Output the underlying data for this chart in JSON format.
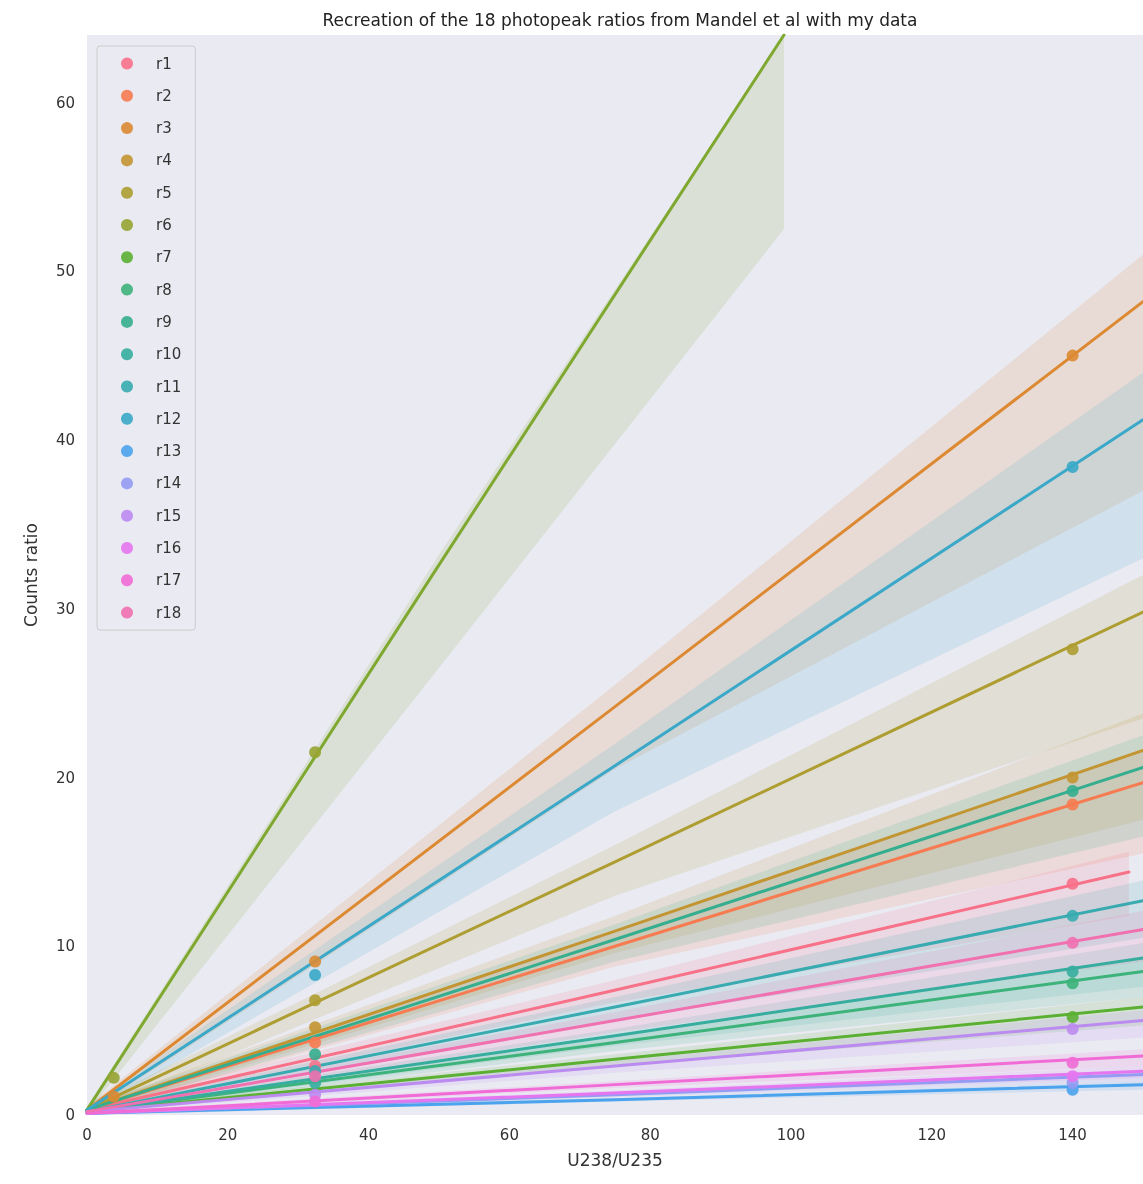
{
  "chart_data": {
    "type": "scatter",
    "title": "Recreation of the 18 photopeak ratios from Mandel et al with my data",
    "xlabel": "U238/U235",
    "ylabel": "Counts ratio",
    "xlim": [
      0,
      150
    ],
    "xticks": [
      0,
      20,
      40,
      60,
      80,
      100,
      120,
      140
    ],
    "ylim": [
      0,
      64
    ],
    "yticks": [
      0,
      10,
      20,
      30,
      40,
      50,
      60
    ],
    "grid": false,
    "legend": "top left",
    "marker": "circle",
    "series": [
      {
        "type": "line",
        "marker": "none",
        "color": "#f77189",
        "x": [
          0,
          74,
          148
        ],
        "values": [
          0.3,
          7.3,
          14.4
        ],
        "lower": [
          0.1,
          6.6,
          11.8
        ],
        "upper": [
          0.5,
          7.9,
          15.6
        ]
      },
      {
        "type": "line",
        "marker": "none",
        "color": "#f67b51",
        "x": [
          0,
          75,
          150
        ],
        "values": [
          0.3,
          10,
          19.7
        ],
        "lower": [
          0.1,
          8.8,
          15.5
        ],
        "upper": [
          0.5,
          10.8,
          21.5
        ]
      },
      {
        "type": "line",
        "marker": "none",
        "color": "#dc8932",
        "x": [
          0,
          75,
          150
        ],
        "values": [
          0.3,
          24.2,
          48.2
        ],
        "lower": [
          0.1,
          20.5,
          37
        ],
        "upper": [
          0.5,
          25.5,
          51
        ]
      },
      {
        "type": "line",
        "marker": "none",
        "color": "#c39532",
        "x": [
          0,
          75,
          150
        ],
        "values": [
          0.3,
          10.9,
          21.6
        ],
        "lower": [
          0.1,
          9.6,
          17.5
        ],
        "upper": [
          0.5,
          11.8,
          23.8
        ]
      },
      {
        "type": "line",
        "marker": "none",
        "color": "#ae9d31",
        "x": [
          0,
          75,
          150
        ],
        "values": [
          0.3,
          15,
          29.8
        ],
        "lower": [
          0.1,
          13,
          23.5
        ],
        "upper": [
          0.5,
          16,
          32
        ]
      },
      {
        "type": "line",
        "marker": "none",
        "color": "#7fa831",
        "x": [
          0,
          50,
          99
        ],
        "values": [
          0.3,
          32.6,
          64
        ],
        "lower": [
          0.1,
          26.5,
          52.5
        ],
        "upper": [
          0.5,
          33.2,
          64
        ]
      },
      {
        "type": "line",
        "marker": "none",
        "color": "#5bb033",
        "x": [
          0,
          75,
          150
        ],
        "values": [
          0.2,
          3.3,
          6.4
        ],
        "lower": [
          0.1,
          2.9,
          5.3
        ],
        "upper": [
          0.3,
          3.6,
          7
        ]
      },
      {
        "type": "line",
        "marker": "none",
        "color": "#3db27a",
        "x": [
          0,
          75,
          150
        ],
        "values": [
          0.2,
          4.3,
          8.5
        ],
        "lower": [
          0.1,
          3.8,
          7
        ],
        "upper": [
          0.3,
          4.7,
          9.3
        ]
      },
      {
        "type": "line",
        "marker": "none",
        "color": "#35ae8f",
        "x": [
          0,
          75,
          150
        ],
        "values": [
          0.3,
          10.4,
          20.6
        ],
        "lower": [
          0.1,
          9.1,
          16.5
        ],
        "upper": [
          0.5,
          11.3,
          22.5
        ]
      },
      {
        "type": "line",
        "marker": "none",
        "color": "#36ad9e",
        "x": [
          0,
          75,
          150
        ],
        "values": [
          0.2,
          4.7,
          9.3
        ],
        "lower": [
          0.1,
          4.1,
          7.6
        ],
        "upper": [
          0.3,
          5.1,
          10.2
        ]
      },
      {
        "type": "line",
        "marker": "none",
        "color": "#38abb0",
        "x": [
          0,
          75,
          150
        ],
        "values": [
          0.2,
          6.4,
          12.7
        ],
        "lower": [
          0.1,
          5.6,
          10.5
        ],
        "upper": [
          0.3,
          7,
          13.9
        ]
      },
      {
        "type": "line",
        "marker": "none",
        "color": "#3aa8c8",
        "x": [
          0,
          75,
          150
        ],
        "values": [
          0.3,
          20.7,
          41.2
        ],
        "lower": [
          0.1,
          18,
          33
        ],
        "upper": [
          0.5,
          22,
          44
        ]
      },
      {
        "type": "line",
        "marker": "none",
        "color": "#4aa3ec",
        "x": [
          0,
          75,
          150
        ],
        "values": [
          0.1,
          0.9,
          1.8
        ],
        "lower": [
          0,
          0.8,
          1.5
        ],
        "upper": [
          0.2,
          1,
          2
        ]
      },
      {
        "type": "line",
        "marker": "none",
        "color": "#949bf2",
        "x": [
          0,
          75,
          150
        ],
        "values": [
          0.1,
          1.2,
          2.4
        ],
        "lower": [
          0,
          1.05,
          2
        ],
        "upper": [
          0.2,
          1.3,
          2.7
        ]
      },
      {
        "type": "line",
        "marker": "none",
        "color": "#bb8bef",
        "x": [
          0,
          75,
          150
        ],
        "values": [
          0.2,
          2.9,
          5.6
        ],
        "lower": [
          0.1,
          2.5,
          4.6
        ],
        "upper": [
          0.3,
          3.2,
          6.2
        ]
      },
      {
        "type": "line",
        "marker": "none",
        "color": "#e676ef",
        "x": [
          0,
          75,
          150
        ],
        "values": [
          0.1,
          1.3,
          2.6
        ],
        "lower": [
          0,
          1.15,
          2.2
        ],
        "upper": [
          0.2,
          1.45,
          2.9
        ]
      },
      {
        "type": "line",
        "marker": "none",
        "color": "#f06bd6",
        "x": [
          0,
          75,
          150
        ],
        "values": [
          0.1,
          1.8,
          3.5
        ],
        "lower": [
          0,
          1.6,
          2.9
        ],
        "upper": [
          0.2,
          2,
          3.9
        ]
      },
      {
        "type": "line",
        "marker": "none",
        "color": "#f070b0",
        "x": [
          0,
          75,
          150
        ],
        "values": [
          0.2,
          5.6,
          11
        ],
        "lower": [
          0.1,
          4.9,
          9.1
        ],
        "upper": [
          0.3,
          6.1,
          12.1
        ]
      },
      {
        "name": "r1",
        "color": "#f77189",
        "x": [
          32.4,
          140
        ],
        "values": [
          2.9,
          13.7
        ]
      },
      {
        "name": "r2",
        "color": "#f67b51",
        "x": [
          32.4,
          140
        ],
        "values": [
          4.3,
          18.4
        ]
      },
      {
        "name": "r3",
        "color": "#dc8932",
        "x": [
          3.8,
          32.4,
          140
        ],
        "values": [
          1.1,
          9.1,
          45.0
        ]
      },
      {
        "name": "r4",
        "color": "#c39532",
        "x": [
          32.4,
          140
        ],
        "values": [
          5.2,
          20.0
        ]
      },
      {
        "name": "r5",
        "color": "#ae9d31",
        "x": [
          32.4,
          140
        ],
        "values": [
          6.8,
          27.6
        ]
      },
      {
        "name": "r6",
        "color": "#97a431",
        "x": [
          3.8,
          32.4
        ],
        "values": [
          2.2,
          21.5
        ]
      },
      {
        "name": "r7",
        "color": "#5bb033",
        "x": [
          140
        ],
        "values": [
          5.8
        ]
      },
      {
        "name": "r8",
        "color": "#3db27a",
        "x": [
          140
        ],
        "values": [
          7.8
        ]
      },
      {
        "name": "r9",
        "color": "#35ae8f",
        "x": [
          32.4,
          140
        ],
        "values": [
          3.6,
          19.2
        ]
      },
      {
        "name": "r10",
        "color": "#36ad9e",
        "x": [
          32.4,
          140
        ],
        "values": [
          1.9,
          8.5
        ]
      },
      {
        "name": "r11",
        "color": "#38abb0",
        "x": [
          32.4,
          140
        ],
        "values": [
          2.6,
          11.8
        ]
      },
      {
        "name": "r12",
        "color": "#3aa8c8",
        "x": [
          32.4,
          140
        ],
        "values": [
          8.3,
          38.4
        ]
      },
      {
        "name": "r13",
        "color": "#4aa3ec",
        "x": [
          140
        ],
        "values": [
          1.5
        ]
      },
      {
        "name": "r14",
        "color": "#949bf2",
        "x": [
          140
        ],
        "values": [
          1.9
        ]
      },
      {
        "name": "r15",
        "color": "#bb8bef",
        "x": [
          32.4,
          140
        ],
        "values": [
          1.2,
          5.1
        ]
      },
      {
        "name": "r16",
        "color": "#e676ef",
        "x": [
          140
        ],
        "values": [
          2.3
        ]
      },
      {
        "name": "r17",
        "color": "#f06bd6",
        "x": [
          32.4,
          140
        ],
        "values": [
          0.8,
          3.1
        ]
      },
      {
        "name": "r18",
        "color": "#f070b0",
        "x": [
          32.4,
          140
        ],
        "values": [
          2.3,
          10.2
        ]
      }
    ]
  }
}
